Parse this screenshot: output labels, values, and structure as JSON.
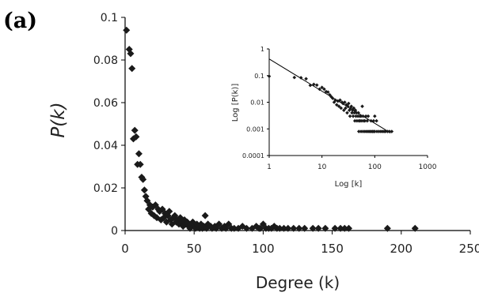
{
  "panel_label": "(a)",
  "chart_data": [
    {
      "type": "scatter",
      "title": "",
      "xlabel": "Degree (k)",
      "ylabel": "P(k)",
      "xlim": [
        0,
        250
      ],
      "ylim": [
        0,
        0.1
      ],
      "xticks": [
        "0",
        "50",
        "100",
        "150",
        "200",
        "250"
      ],
      "yticks": [
        "0",
        "0.02",
        "0.04",
        "0.06",
        "0.08",
        "0.1"
      ],
      "marker": "diamond",
      "marker_color": "#1a1a1a",
      "series": [
        {
          "points": [
            [
              1,
              0.094
            ],
            [
              3,
              0.085
            ],
            [
              4,
              0.083
            ],
            [
              5,
              0.076
            ],
            [
              6,
              0.043
            ],
            [
              7,
              0.047
            ],
            [
              8,
              0.044
            ],
            [
              9,
              0.031
            ],
            [
              10,
              0.036
            ],
            [
              11,
              0.031
            ],
            [
              12,
              0.025
            ],
            [
              13,
              0.024
            ],
            [
              14,
              0.019
            ],
            [
              15,
              0.016
            ],
            [
              16,
              0.014
            ],
            [
              17,
              0.01
            ],
            [
              18,
              0.012
            ],
            [
              19,
              0.008
            ],
            [
              20,
              0.011
            ],
            [
              21,
              0.007
            ],
            [
              22,
              0.012
            ],
            [
              23,
              0.006
            ],
            [
              24,
              0.01
            ],
            [
              25,
              0.009
            ],
            [
              26,
              0.005
            ],
            [
              27,
              0.01
            ],
            [
              28,
              0.006
            ],
            [
              29,
              0.008
            ],
            [
              30,
              0.004
            ],
            [
              31,
              0.007
            ],
            [
              32,
              0.009
            ],
            [
              33,
              0.005
            ],
            [
              34,
              0.003
            ],
            [
              35,
              0.006
            ],
            [
              36,
              0.007
            ],
            [
              37,
              0.004
            ],
            [
              38,
              0.005
            ],
            [
              39,
              0.003
            ],
            [
              40,
              0.006
            ],
            [
              41,
              0.004
            ],
            [
              42,
              0.002
            ],
            [
              43,
              0.005
            ],
            [
              44,
              0.003
            ],
            [
              45,
              0.004
            ],
            [
              46,
              0.002
            ],
            [
              47,
              0.001
            ],
            [
              48,
              0.003
            ],
            [
              49,
              0.004
            ],
            [
              50,
              0.002
            ],
            [
              51,
              0.001
            ],
            [
              52,
              0.003
            ],
            [
              53,
              0.002
            ],
            [
              54,
              0.001
            ],
            [
              55,
              0.003
            ],
            [
              56,
              0.001
            ],
            [
              57,
              0.002
            ],
            [
              58,
              0.007
            ],
            [
              59,
              0.001
            ],
            [
              60,
              0.003
            ],
            [
              62,
              0.002
            ],
            [
              63,
              0.001
            ],
            [
              65,
              0.002
            ],
            [
              66,
              0.001
            ],
            [
              68,
              0.003
            ],
            [
              70,
              0.001
            ],
            [
              72,
              0.002
            ],
            [
              73,
              0.001
            ],
            [
              75,
              0.003
            ],
            [
              77,
              0.001
            ],
            [
              79,
              0.001
            ],
            [
              82,
              0.001
            ],
            [
              85,
              0.002
            ],
            [
              88,
              0.001
            ],
            [
              92,
              0.001
            ],
            [
              95,
              0.002
            ],
            [
              97,
              0.001
            ],
            [
              98,
              0.001
            ],
            [
              100,
              0.003
            ],
            [
              102,
              0.001
            ],
            [
              104,
              0.001
            ],
            [
              106,
              0.001
            ],
            [
              108,
              0.002
            ],
            [
              110,
              0.001
            ],
            [
              112,
              0.001
            ],
            [
              115,
              0.001
            ],
            [
              118,
              0.001
            ],
            [
              122,
              0.001
            ],
            [
              126,
              0.001
            ],
            [
              130,
              0.001
            ],
            [
              136,
              0.001
            ],
            [
              140,
              0.001
            ],
            [
              145,
              0.001
            ],
            [
              152,
              0.001
            ],
            [
              156,
              0.001
            ],
            [
              159,
              0.001
            ],
            [
              162,
              0.001
            ],
            [
              190,
              0.001
            ],
            [
              210,
              0.001
            ]
          ]
        }
      ]
    },
    {
      "type": "scatter",
      "title": "",
      "xlabel": "Log [k]",
      "ylabel": "Log [P(k)]",
      "xscale": "log",
      "yscale": "log",
      "xlim": [
        1,
        1000
      ],
      "ylim": [
        0.0001,
        1
      ],
      "xticks": [
        "1",
        "10",
        "100",
        "1000"
      ],
      "yticks": [
        "0.0001",
        "0.001",
        "0.01",
        "0.1",
        "1"
      ],
      "marker": "diamond",
      "fit_line": {
        "x": [
          1,
          200
        ],
        "y": [
          0.42,
          0.0007
        ]
      },
      "series": [
        {
          "points": [
            [
              1,
              0.094
            ],
            [
              3,
              0.085
            ],
            [
              4,
              0.083
            ],
            [
              5,
              0.076
            ],
            [
              6,
              0.043
            ],
            [
              7,
              0.047
            ],
            [
              8,
              0.044
            ],
            [
              9,
              0.031
            ],
            [
              10,
              0.036
            ],
            [
              11,
              0.031
            ],
            [
              12,
              0.025
            ],
            [
              13,
              0.024
            ],
            [
              14,
              0.019
            ],
            [
              15,
              0.016
            ],
            [
              16,
              0.014
            ],
            [
              17,
              0.01
            ],
            [
              18,
              0.012
            ],
            [
              19,
              0.008
            ],
            [
              20,
              0.011
            ],
            [
              21,
              0.007
            ],
            [
              22,
              0.012
            ],
            [
              23,
              0.006
            ],
            [
              24,
              0.01
            ],
            [
              25,
              0.009
            ],
            [
              26,
              0.005
            ],
            [
              27,
              0.01
            ],
            [
              28,
              0.006
            ],
            [
              29,
              0.008
            ],
            [
              30,
              0.004
            ],
            [
              31,
              0.007
            ],
            [
              32,
              0.009
            ],
            [
              33,
              0.005
            ],
            [
              34,
              0.003
            ],
            [
              35,
              0.006
            ],
            [
              36,
              0.007
            ],
            [
              37,
              0.004
            ],
            [
              38,
              0.005
            ],
            [
              39,
              0.003
            ],
            [
              40,
              0.006
            ],
            [
              41,
              0.004
            ],
            [
              42,
              0.002
            ],
            [
              43,
              0.005
            ],
            [
              44,
              0.003
            ],
            [
              45,
              0.004
            ],
            [
              46,
              0.002
            ],
            [
              48,
              0.003
            ],
            [
              49,
              0.004
            ],
            [
              50,
              0.002
            ],
            [
              52,
              0.003
            ],
            [
              53,
              0.002
            ],
            [
              55,
              0.003
            ],
            [
              57,
              0.002
            ],
            [
              58,
              0.007
            ],
            [
              60,
              0.003
            ],
            [
              62,
              0.002
            ],
            [
              65,
              0.002
            ],
            [
              68,
              0.003
            ],
            [
              72,
              0.002
            ],
            [
              75,
              0.003
            ],
            [
              85,
              0.002
            ],
            [
              95,
              0.002
            ],
            [
              100,
              0.003
            ],
            [
              108,
              0.002
            ],
            [
              50,
              0.0008
            ],
            [
              55,
              0.0008
            ],
            [
              60,
              0.0008
            ],
            [
              65,
              0.0008
            ],
            [
              70,
              0.0008
            ],
            [
              75,
              0.0008
            ],
            [
              80,
              0.0008
            ],
            [
              85,
              0.0008
            ],
            [
              90,
              0.0008
            ],
            [
              95,
              0.0008
            ],
            [
              100,
              0.0008
            ],
            [
              110,
              0.0008
            ],
            [
              120,
              0.0008
            ],
            [
              130,
              0.0008
            ],
            [
              140,
              0.0008
            ],
            [
              150,
              0.0008
            ],
            [
              160,
              0.0008
            ],
            [
              175,
              0.0008
            ],
            [
              190,
              0.0008
            ],
            [
              210,
              0.0008
            ]
          ]
        }
      ]
    }
  ]
}
